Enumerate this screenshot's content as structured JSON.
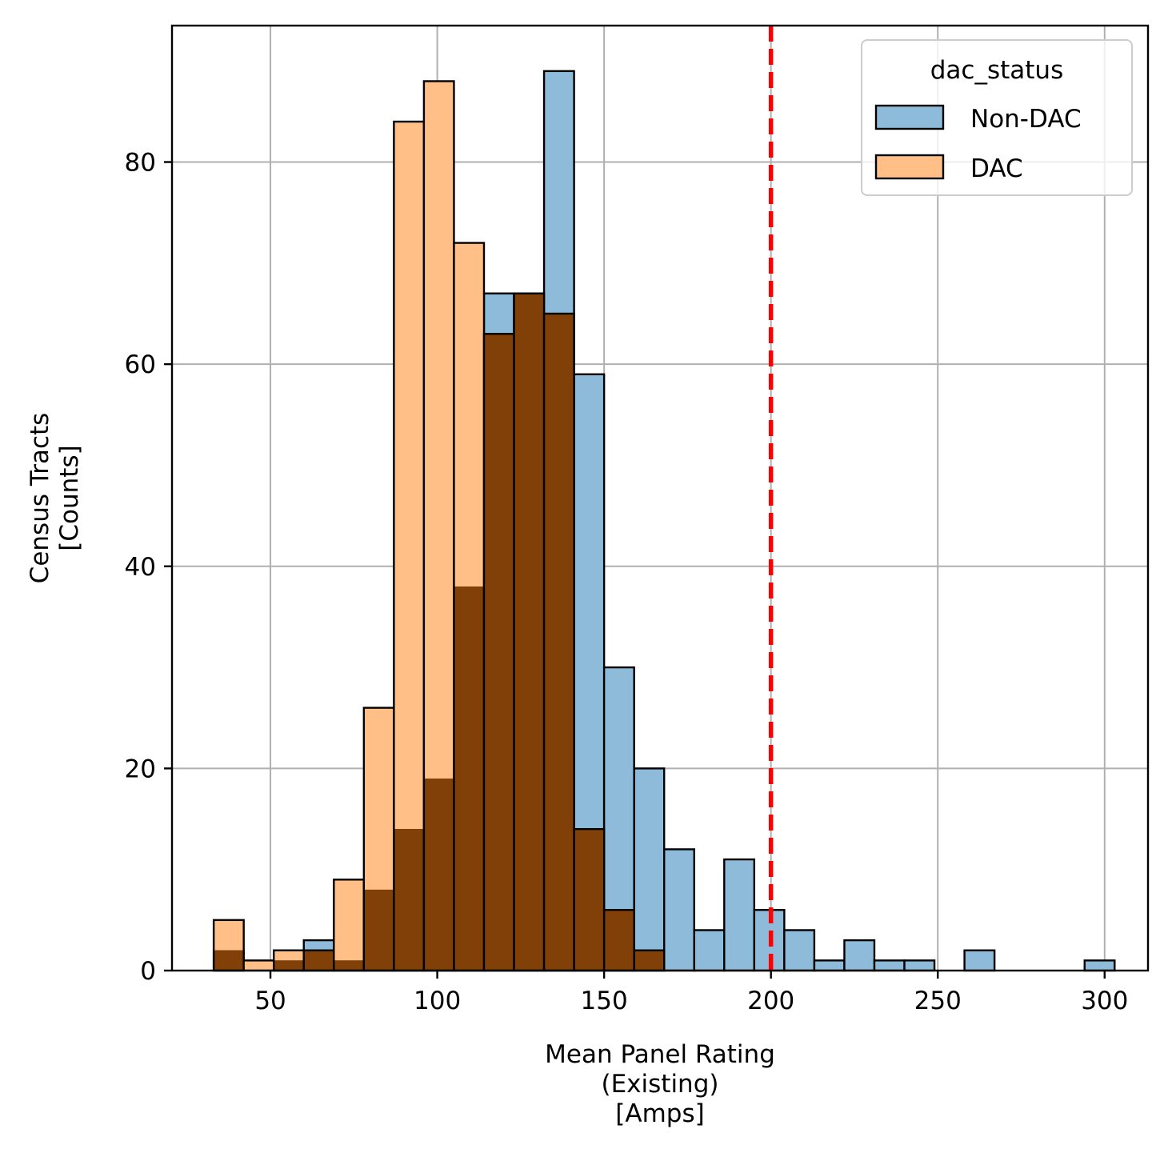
{
  "chart_data": {
    "type": "bar",
    "subtype": "overlaid-histogram",
    "xlabel": [
      "Mean Panel Rating",
      "(Existing)",
      "[Amps]"
    ],
    "ylabel": [
      "Census Tracts",
      "[Counts]"
    ],
    "xlim": [
      20.5,
      313
    ],
    "ylim": [
      0,
      93.5
    ],
    "xticks": [
      50,
      100,
      150,
      200,
      250,
      300
    ],
    "yticks": [
      0,
      20,
      40,
      60,
      80
    ],
    "grid": true,
    "bin_edges": [
      33,
      42,
      51,
      60,
      69,
      78,
      87,
      96,
      105,
      114,
      123,
      132,
      141,
      150,
      159,
      168,
      177,
      186,
      195,
      204,
      213,
      222,
      231,
      240,
      249,
      258,
      267,
      276,
      285,
      294,
      303
    ],
    "series": [
      {
        "name": "Non-DAC",
        "color": "#1f77b4",
        "values": [
          2,
          0,
          1,
          3,
          1,
          8,
          14,
          19,
          38,
          67,
          67,
          89,
          59,
          30,
          20,
          12,
          4,
          11,
          6,
          4,
          1,
          3,
          1,
          1,
          0,
          2,
          0,
          0,
          0,
          1
        ]
      },
      {
        "name": "DAC",
        "color": "#ff7f0e",
        "values": [
          5,
          1,
          2,
          2,
          9,
          26,
          84,
          88,
          72,
          63,
          67,
          65,
          14,
          6,
          2,
          0,
          0,
          0,
          0,
          0,
          0,
          0,
          0,
          0,
          0,
          0,
          0,
          0,
          0,
          0
        ]
      }
    ],
    "reference_line": {
      "x": 200,
      "color": "#ff0000",
      "style": "dashed"
    },
    "legend": {
      "title": "dac_status",
      "position": "upper-right",
      "entries": [
        "Non-DAC",
        "DAC"
      ]
    }
  }
}
